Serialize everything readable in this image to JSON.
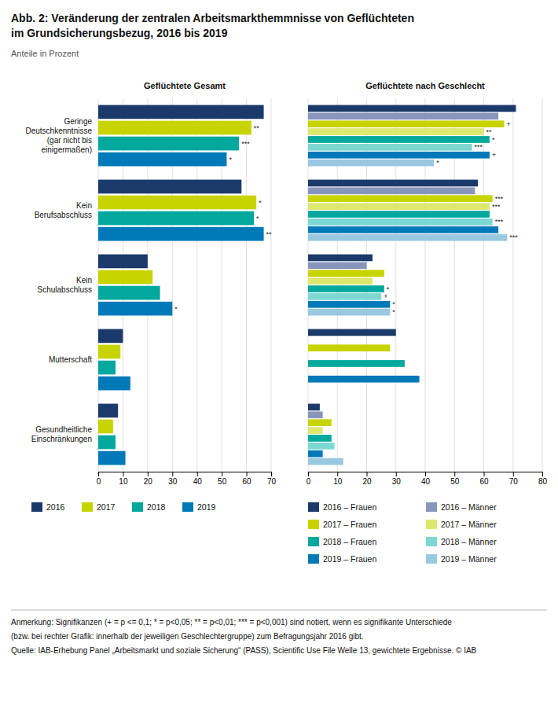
{
  "title": [
    "Abb. 2: Veränderung der zentralen Arbeitsmarkthemmnisse von Geflüchteten",
    "im Grundsicherungsbezug, 2016 bis 2019"
  ],
  "subtitle": "Anteile in Prozent",
  "notes": [
    "Anmerkung: Signifikanzen (+ = p <= 0,1; * = p<0,05; ** = p<0,01; *** = p<0,001) sind notiert, wenn es signifikante Unterschiede",
    "(bzw. bei rechter Grafik: innerhalb der jeweiligen Geschlechtergruppe) zum Befragungsjahr 2016 gibt.",
    "Quelle: IAB-Erhebung Panel „Arbeitsmarkt und soziale Sicherung“ (PASS), Scientific Use File Welle 13, gewichtete Ergebnisse. © IAB"
  ],
  "chart_data": [
    {
      "type": "bar",
      "orientation": "horizontal",
      "title": "Geflüchtete Gesamt",
      "categories": [
        "Geringe\nDeutschkenntnisse\n(gar nicht bis\neinigermaßen)",
        "Kein\nBerufsabschluss",
        "Kein\nSchulabschluss",
        "Mutterschaft",
        "Gesundheitliche\nEinschränkungen"
      ],
      "series": [
        {
          "name": "2016",
          "color": "#1b3a6b",
          "values": [
            67,
            58,
            20,
            10,
            8
          ]
        },
        {
          "name": "2017",
          "color": "#c8d400",
          "values": [
            62,
            64,
            22,
            9,
            6
          ],
          "annotations": [
            "**",
            "*",
            null,
            null,
            null
          ]
        },
        {
          "name": "2018",
          "color": "#00a89e",
          "values": [
            57,
            63,
            25,
            7,
            7
          ],
          "annotations": [
            "***",
            "*",
            null,
            null,
            null
          ]
        },
        {
          "name": "2019",
          "color": "#0079b8",
          "values": [
            52,
            67,
            30,
            13,
            11
          ],
          "annotations": [
            "*",
            "**",
            "*",
            null,
            null
          ]
        }
      ],
      "xlim": [
        0,
        70
      ],
      "xticks": [
        0,
        10,
        20,
        30,
        40,
        50,
        60,
        70
      ],
      "grid": true,
      "legend": "bottom"
    },
    {
      "type": "bar",
      "orientation": "horizontal",
      "title": "Geflüchtete nach Geschlecht",
      "categories": [
        "Geringe\nDeutschkenntnisse\n(gar nicht bis\neinigermaßen)",
        "Kein\nBerufsabschluss",
        "Kein\nSchulabschluss",
        "Mutterschaft",
        "Gesundheitliche\nEinschränkungen"
      ],
      "tick_labels": "x",
      "series": [
        {
          "name": "2016 – Frauen",
          "color": "#1b3a6b",
          "values": [
            71,
            58,
            22,
            30,
            4
          ]
        },
        {
          "name": "2016 – Männer",
          "color": "#8896bc",
          "values": [
            65,
            57,
            20,
            0,
            5
          ]
        },
        {
          "name": "2017 – Frauen",
          "color": "#c8d400",
          "values": [
            67,
            63,
            26,
            28,
            8
          ],
          "annotations": [
            "+",
            "***",
            null,
            null,
            null
          ]
        },
        {
          "name": "2017 – Männer",
          "color": "#dde86e",
          "values": [
            60,
            62,
            22,
            0,
            5
          ],
          "annotations": [
            "**",
            "***",
            null,
            null,
            null
          ]
        },
        {
          "name": "2018 – Frauen",
          "color": "#00a89e",
          "values": [
            62,
            62,
            26,
            33,
            8
          ],
          "annotations": [
            "*",
            null,
            "*",
            null,
            null
          ]
        },
        {
          "name": "2018 – Männer",
          "color": "#7dd8d4",
          "values": [
            56,
            63,
            25,
            0,
            9
          ],
          "annotations": [
            "***",
            "***",
            "+",
            null,
            null
          ]
        },
        {
          "name": "2019 – Frauen",
          "color": "#0079b8",
          "values": [
            62,
            65,
            28,
            38,
            5
          ],
          "annotations": [
            "+",
            null,
            "*",
            null,
            null
          ]
        },
        {
          "name": "2019 – Männer",
          "color": "#99c8e0",
          "values": [
            43,
            68,
            28,
            0,
            12
          ],
          "annotations": [
            "*",
            "***",
            "*",
            null,
            null
          ]
        }
      ],
      "xlim": [
        0,
        80
      ],
      "xticks": [
        0,
        10,
        20,
        30,
        40,
        50,
        60,
        70,
        80
      ],
      "grid": true,
      "legend": "bottom"
    }
  ]
}
